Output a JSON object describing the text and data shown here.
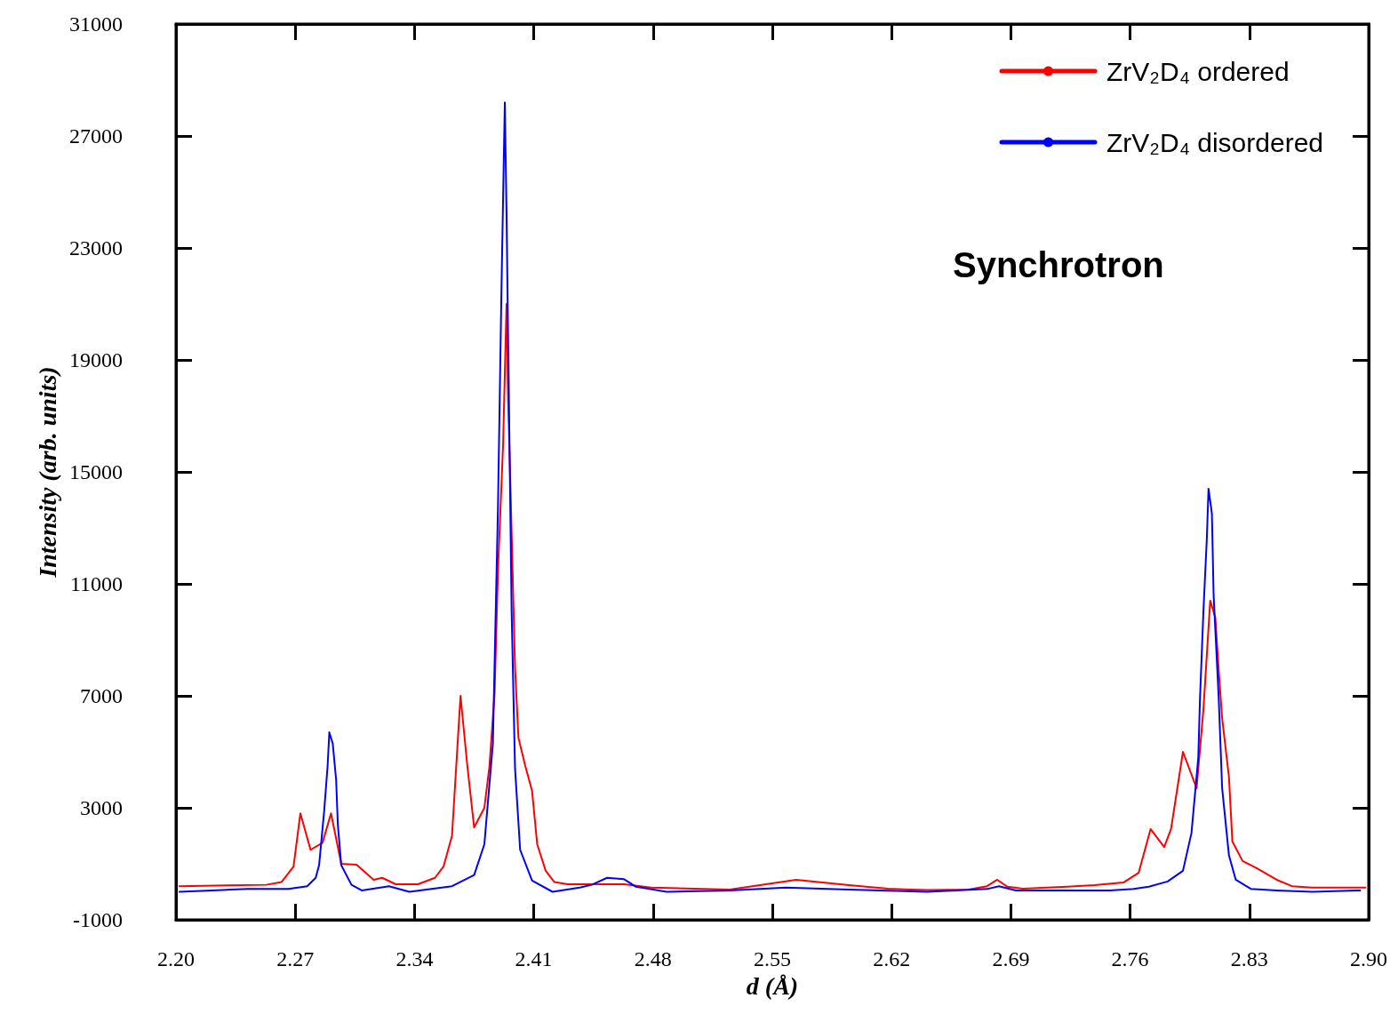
{
  "chart_data": {
    "type": "line",
    "xlabel": "d (Å)",
    "ylabel": "Intensity (arb. units)",
    "annotations": [
      "Synchrotron"
    ],
    "xlim": [
      2.2,
      2.9
    ],
    "xticks": [
      {
        "value": 2.2,
        "label": "2.20"
      },
      2.27,
      2.34,
      2.41,
      2.48,
      2.55,
      2.62,
      2.69,
      2.76,
      2.83,
      {
        "value": 2.9,
        "label": "2.90"
      }
    ],
    "ylim": [
      -1000,
      31000
    ],
    "yticks": [
      -1000,
      3000,
      7000,
      11000,
      15000,
      19000,
      23000,
      27000,
      31000
    ],
    "grid": false,
    "legend": "top right",
    "marker": "none",
    "line_style": "solid",
    "series": [
      {
        "name": "ZrV₂D₄ ordered",
        "color": "#ff0000",
        "x": [
          2.202,
          2.253,
          2.262,
          2.269,
          2.273,
          2.279,
          2.286,
          2.291,
          2.297,
          2.306,
          2.316,
          2.321,
          2.329,
          2.342,
          2.352,
          2.357,
          2.362,
          2.367,
          2.371,
          2.375,
          2.381,
          2.384,
          2.387,
          2.389,
          2.392,
          2.394,
          2.395,
          2.397,
          2.399,
          2.401,
          2.405,
          2.409,
          2.412,
          2.417,
          2.422,
          2.43,
          2.463,
          2.479,
          2.525,
          2.564,
          2.595,
          2.618,
          2.641,
          2.665,
          2.676,
          2.682,
          2.688,
          2.697,
          2.723,
          2.739,
          2.756,
          2.765,
          2.772,
          2.78,
          2.784,
          2.791,
          2.799,
          2.803,
          2.807,
          2.81,
          2.812,
          2.814,
          2.818,
          2.82,
          2.826,
          2.834,
          2.846,
          2.855,
          2.867,
          2.898
        ],
        "values": [
          200,
          250,
          350,
          900,
          2800,
          1500,
          1750,
          2800,
          1000,
          970,
          430,
          500,
          270,
          270,
          500,
          900,
          2000,
          7000,
          4500,
          2300,
          3000,
          4500,
          7100,
          11500,
          16000,
          21000,
          17500,
          12800,
          8000,
          5500,
          4500,
          3600,
          1700,
          750,
          350,
          270,
          270,
          150,
          80,
          430,
          240,
          110,
          60,
          80,
          200,
          430,
          180,
          110,
          180,
          240,
          330,
          680,
          2240,
          1600,
          2240,
          5000,
          3700,
          6500,
          10400,
          9800,
          7900,
          6200,
          4100,
          1800,
          1100,
          850,
          430,
          200,
          150,
          150
        ]
      },
      {
        "name": "ZrV₂D₄ disordered",
        "color": "#0000ff",
        "x": [
          2.202,
          2.242,
          2.266,
          2.277,
          2.282,
          2.284,
          2.287,
          2.289,
          2.29,
          2.292,
          2.294,
          2.295,
          2.297,
          2.303,
          2.309,
          2.325,
          2.337,
          2.356,
          2.362,
          2.375,
          2.381,
          2.386,
          2.389,
          2.391,
          2.393,
          2.394,
          2.395,
          2.397,
          2.399,
          2.402,
          2.409,
          2.421,
          2.437,
          2.444,
          2.453,
          2.463,
          2.47,
          2.488,
          2.525,
          2.558,
          2.595,
          2.641,
          2.676,
          2.683,
          2.693,
          2.735,
          2.748,
          2.762,
          2.771,
          2.782,
          2.791,
          2.796,
          2.8,
          2.801,
          2.803,
          2.805,
          2.806,
          2.808,
          2.809,
          2.812,
          2.814,
          2.818,
          2.822,
          2.831,
          2.846,
          2.867,
          2.895
        ],
        "values": [
          0,
          100,
          100,
          200,
          500,
          950,
          2900,
          4500,
          5700,
          5300,
          4000,
          2400,
          950,
          250,
          50,
          200,
          0,
          150,
          200,
          600,
          1700,
          5300,
          13800,
          21400,
          28200,
          24300,
          19500,
          10000,
          4400,
          1500,
          400,
          0,
          150,
          250,
          500,
          450,
          180,
          0,
          50,
          150,
          80,
          0,
          100,
          200,
          50,
          50,
          50,
          100,
          180,
          370,
          750,
          2100,
          4800,
          6900,
          10000,
          12600,
          14400,
          13500,
          10600,
          6900,
          3700,
          1300,
          430,
          100,
          50,
          0,
          50
        ]
      }
    ]
  }
}
